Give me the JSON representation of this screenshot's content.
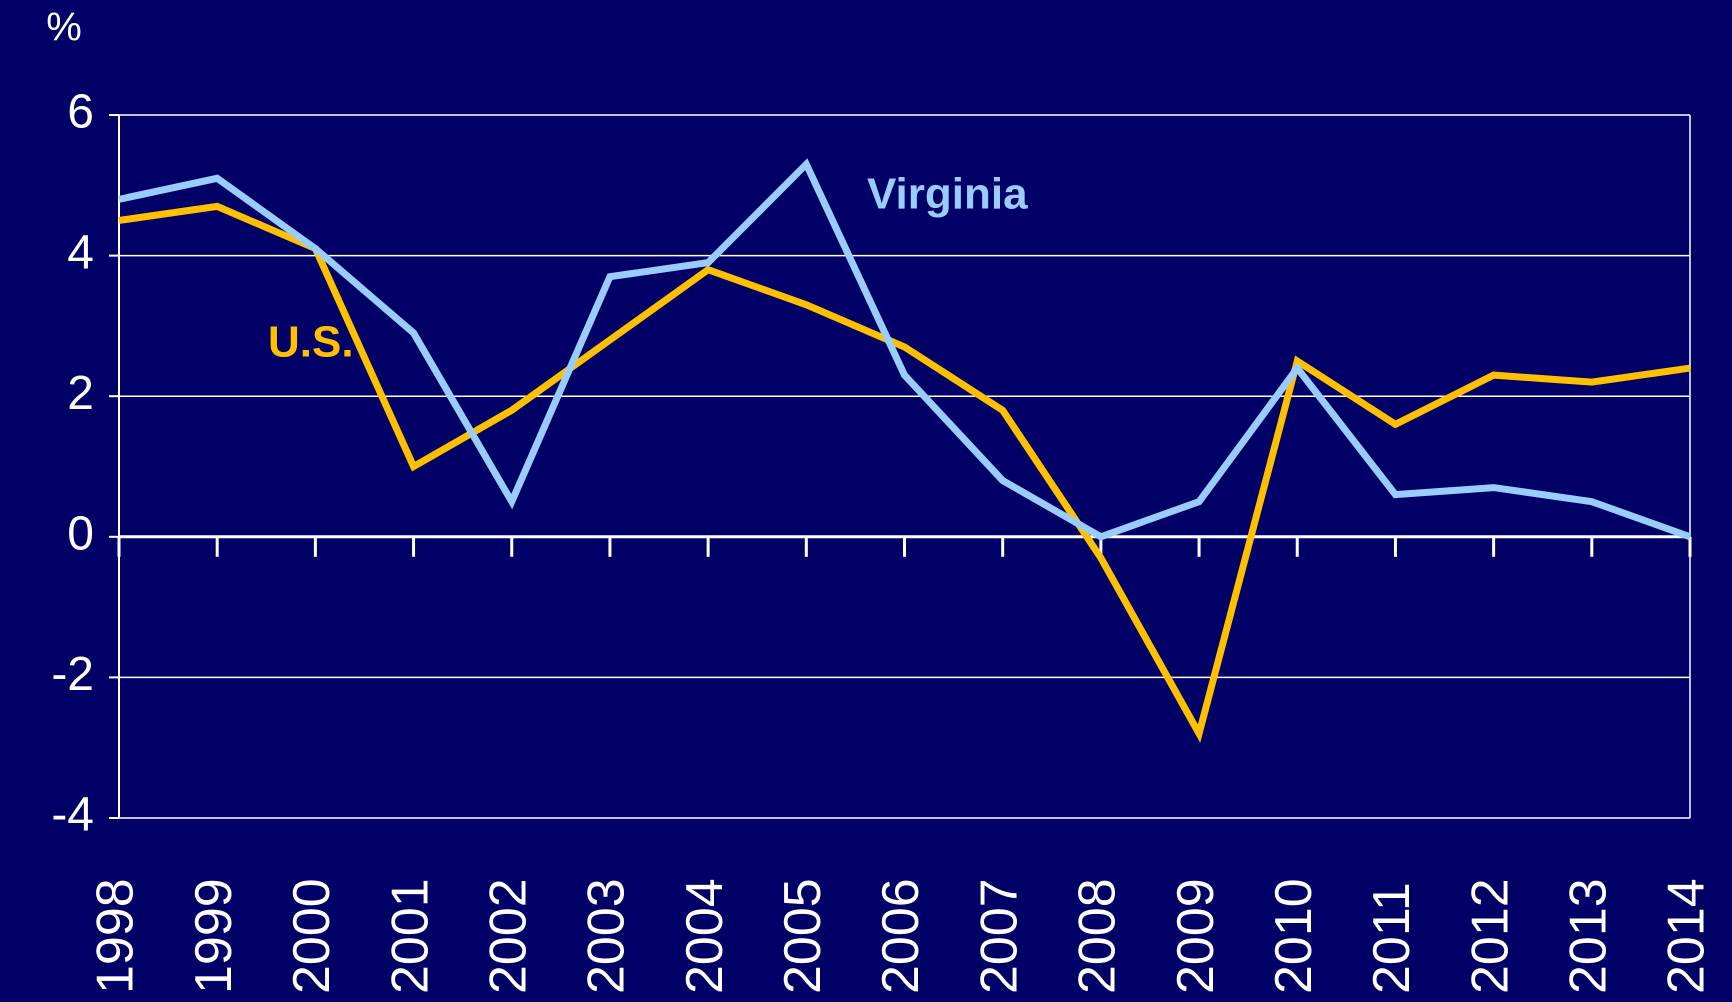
{
  "chart_data": {
    "type": "line",
    "y_unit": "%",
    "categories": [
      "1998",
      "1999",
      "2000",
      "2001",
      "2002",
      "2003",
      "2004",
      "2005",
      "2006",
      "2007",
      "2008",
      "2009",
      "2010",
      "2011",
      "2012",
      "2013",
      "2014"
    ],
    "series": [
      {
        "name": "Virginia",
        "color": "#99ccff",
        "values": [
          4.8,
          5.1,
          4.1,
          2.9,
          0.5,
          3.7,
          3.9,
          5.3,
          2.3,
          0.8,
          0.0,
          0.5,
          2.4,
          0.6,
          0.7,
          0.5,
          0.0
        ]
      },
      {
        "name": "U.S.",
        "color": "#ffc000",
        "values": [
          4.5,
          4.7,
          4.1,
          1.0,
          1.8,
          2.8,
          3.8,
          3.3,
          2.7,
          1.8,
          -0.3,
          -2.8,
          2.5,
          1.6,
          2.3,
          2.2,
          2.4
        ]
      }
    ],
    "ylim": [
      -4,
      6
    ],
    "yticks": [
      -4,
      -2,
      0,
      2,
      4,
      6
    ],
    "grid": true
  }
}
